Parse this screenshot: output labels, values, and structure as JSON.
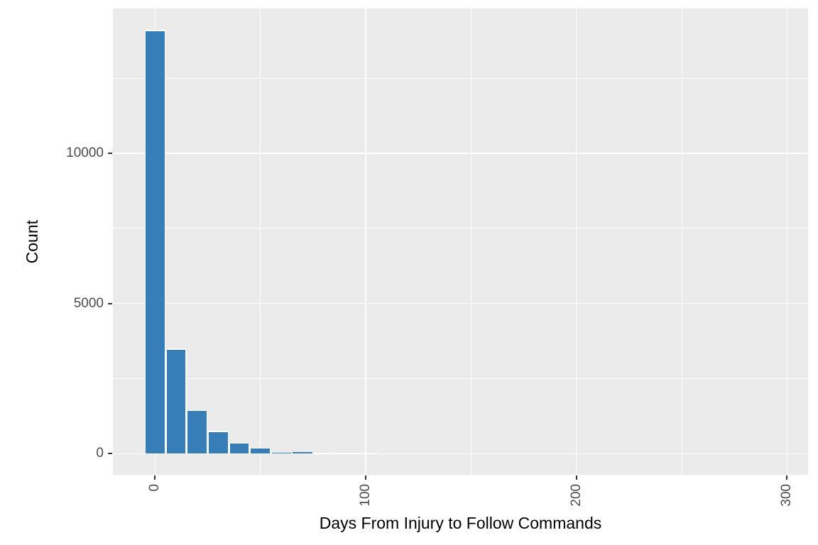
{
  "chart_data": {
    "type": "bar",
    "variant": "histogram",
    "title": "",
    "xlabel": "Days From Injury to Follow Commands",
    "ylabel": "Count",
    "bin_width": 10,
    "bin_centers": [
      0,
      10,
      20,
      30,
      40,
      50,
      60,
      70,
      80,
      90,
      100
    ],
    "counts": [
      14100,
      3500,
      1450,
      760,
      370,
      200,
      40,
      45,
      15,
      10,
      8
    ],
    "x_tick_values": [
      0,
      100,
      200,
      300
    ],
    "x_tick_labels": [
      "0",
      "100",
      "200",
      "300"
    ],
    "x_tick_rotation_deg": 90,
    "y_tick_values": [
      0,
      5000,
      10000
    ],
    "y_tick_labels": [
      "0",
      "5000",
      "10000"
    ],
    "x_minor_gridlines": [
      50,
      150,
      250
    ],
    "y_minor_gridlines": [
      2500,
      7500,
      12500
    ],
    "xlim": [
      -20,
      310
    ],
    "ylim": [
      -700,
      14820
    ],
    "grid": true,
    "legend_position": "none",
    "colors": {
      "bar_fill": "#377EB8",
      "bar_border": "#FFFFFF",
      "panel_bg": "#EBEBEB",
      "gridline": "#FFFFFF",
      "tick_mark": "#333333",
      "tick_label": "#4D4D4D",
      "axis_title": "#000000",
      "page_bg": "#FFFFFF"
    }
  }
}
